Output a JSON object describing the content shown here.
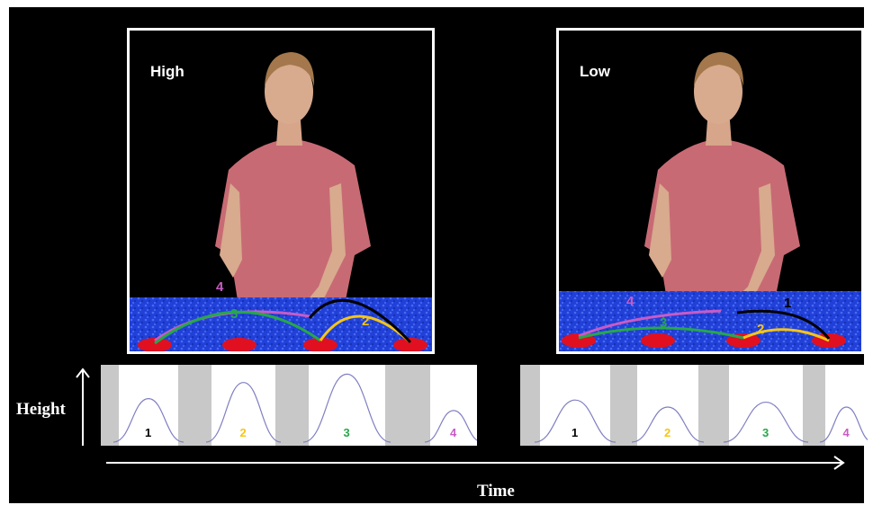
{
  "panels": [
    {
      "id": "high",
      "label": "High"
    },
    {
      "id": "low",
      "label": "Low"
    }
  ],
  "trajectory_numbers": [
    "1",
    "2",
    "3",
    "4"
  ],
  "axis": {
    "y_label": "Height",
    "x_label": "Time"
  },
  "colors": {
    "background": "#000000",
    "table": "#2140d8",
    "shirt": "#c86a74",
    "target": "#e01020",
    "traj_1": "#000000",
    "traj_2": "#f5c518",
    "traj_3": "#27a74a",
    "traj_4": "#c85bc5",
    "plot_line": "#7f7fc2",
    "plot_gray": "#c8c8c8"
  },
  "plots": [
    {
      "id": "high",
      "peaks": [
        0.62,
        0.85,
        0.97,
        0.45
      ]
    },
    {
      "id": "low",
      "peaks": [
        0.6,
        0.5,
        0.57,
        0.5
      ]
    }
  ]
}
